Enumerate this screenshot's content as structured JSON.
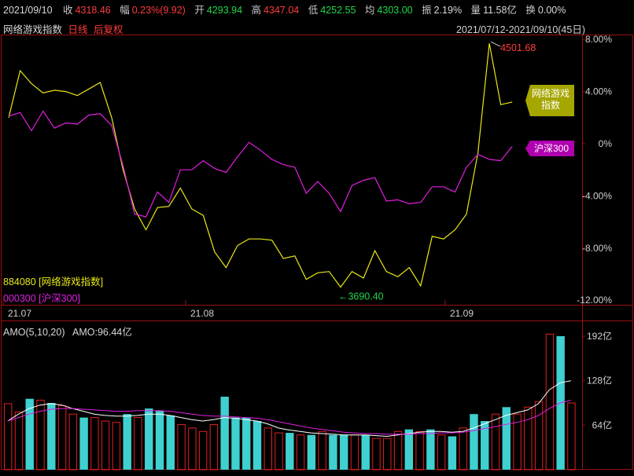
{
  "header": {
    "date": "2021/09/10",
    "close_label": "收",
    "close": "4318.46",
    "change_label": "幅",
    "change": "0.23%(9.92)",
    "open_label": "开",
    "open": "4293.94",
    "high_label": "高",
    "high": "4347.04",
    "low_label": "低",
    "low": "4252.55",
    "avg_label": "均",
    "avg": "4303.00",
    "amp_label": "振",
    "amp": "2.19%",
    "vol_label": "量",
    "vol": "11.58亿",
    "turnover_label": "换",
    "turnover": "0.00%"
  },
  "subheader": {
    "index_name": "网络游戏指数",
    "period": "日线",
    "adjust": "后复权",
    "range": "2021/07/12-2021/09/10(45日)"
  },
  "legend": {
    "line1": "884080 [网络游戏指数]",
    "line2": "000300 [沪深300]"
  },
  "tags": {
    "game": "网络游戏指数",
    "hs300": "沪深300"
  },
  "annotations": {
    "max": "4501.68",
    "min": "3690.40"
  },
  "amo": {
    "title": "AMO(5,10,20)",
    "value": "AMO:96.44亿"
  },
  "colors": {
    "game_line": "#e8e818",
    "hs300_line": "#e020e0",
    "up_bar": "#e02020",
    "down_bar": "#40d0d0",
    "ma_white": "#ffffff",
    "ma_magenta": "#e020e0"
  },
  "chart_data": [
    {
      "type": "line",
      "x_ticks": [
        "21.07",
        "21.08",
        "21.09"
      ],
      "y_ticks": [
        "8.00%",
        "4.00%",
        "0%",
        "-4.00%",
        "-8.00%",
        "-12.00%"
      ],
      "ylim": [
        -12,
        8
      ],
      "series": [
        {
          "name": "网络游戏指数",
          "values": [
            2.0,
            5.6,
            4.6,
            3.9,
            4.1,
            4.0,
            3.7,
            4.2,
            4.7,
            2.0,
            -2.0,
            -5.0,
            -6.6,
            -4.9,
            -4.8,
            -3.4,
            -5.0,
            -5.5,
            -8.3,
            -9.5,
            -7.8,
            -7.3,
            -7.3,
            -7.4,
            -8.8,
            -8.6,
            -10.4,
            -9.9,
            -9.8,
            -11.0,
            -9.8,
            -10.3,
            -8.2,
            -9.8,
            -10.2,
            -9.5,
            -10.9,
            -7.1,
            -7.3,
            -6.6,
            -5.4,
            -0.7,
            7.7,
            3.0,
            3.2
          ]
        },
        {
          "name": "沪深300",
          "values": [
            2.1,
            2.4,
            1.0,
            2.5,
            1.2,
            1.6,
            1.5,
            2.2,
            2.3,
            1.4,
            -1.7,
            -5.4,
            -5.6,
            -3.7,
            -4.5,
            -2.0,
            -2.0,
            -1.3,
            -1.9,
            -2.2,
            -1.0,
            0.1,
            -0.5,
            -1.2,
            -1.6,
            -1.8,
            -3.8,
            -2.9,
            -3.8,
            -5.2,
            -3.2,
            -2.8,
            -2.6,
            -4.4,
            -4.3,
            -4.6,
            -4.5,
            -3.3,
            -3.3,
            -3.7,
            -1.8,
            -0.8,
            -1.2,
            -1.3,
            -0.2
          ]
        }
      ],
      "annotations": [
        {
          "text": "4501.68",
          "index": 42,
          "series": "网络游戏指数"
        },
        {
          "text": "3690.40",
          "index": 29,
          "series": "网络游戏指数"
        }
      ]
    },
    {
      "type": "bar",
      "title": "AMO(5,10,20)",
      "y_ticks": [
        "192亿",
        "128亿",
        "64亿"
      ],
      "ylim": [
        0,
        200
      ],
      "values": [
        95,
        83,
        102,
        100,
        96,
        92,
        80,
        75,
        75,
        70,
        68,
        80,
        75,
        88,
        85,
        78,
        65,
        60,
        55,
        65,
        105,
        75,
        75,
        70,
        60,
        53,
        53,
        50,
        50,
        55,
        50,
        50,
        50,
        50,
        45,
        45,
        55,
        58,
        55,
        58,
        50,
        48,
        60,
        80,
        70,
        80,
        90,
        80,
        90,
        98,
        195,
        192,
        96
      ],
      "up": [
        true,
        true,
        false,
        true,
        false,
        true,
        true,
        false,
        true,
        true,
        true,
        false,
        true,
        false,
        false,
        false,
        true,
        true,
        true,
        true,
        false,
        false,
        false,
        false,
        true,
        true,
        false,
        true,
        false,
        true,
        false,
        false,
        true,
        false,
        true,
        true,
        true,
        false,
        true,
        false,
        true,
        false,
        true,
        false,
        false,
        true,
        false,
        true,
        true,
        true,
        true,
        false,
        true
      ],
      "series": [
        {
          "name": "AMO5",
          "values": [
            70,
            80,
            88,
            93,
            95,
            93,
            88,
            84,
            80,
            78,
            77,
            77,
            78,
            80,
            80,
            78,
            75,
            72,
            70,
            72,
            75,
            74,
            72,
            70,
            66,
            60,
            57,
            55,
            53,
            52,
            51,
            50,
            50,
            50,
            49,
            48,
            50,
            52,
            54,
            55,
            55,
            54,
            55,
            60,
            66,
            72,
            78,
            82,
            86,
            95,
            115,
            125,
            128
          ]
        },
        {
          "name": "AMO10",
          "values": [
            70,
            75,
            80,
            84,
            87,
            88,
            88,
            87,
            86,
            85,
            84,
            84,
            85,
            85,
            85,
            84,
            82,
            80,
            78,
            77,
            77,
            76,
            75,
            74,
            72,
            69,
            66,
            63,
            60,
            58,
            56,
            54,
            53,
            52,
            52,
            51,
            51,
            51,
            52,
            52,
            53,
            53,
            54,
            56,
            59,
            62,
            65,
            68,
            72,
            78,
            88,
            96,
            100
          ]
        }
      ]
    }
  ]
}
